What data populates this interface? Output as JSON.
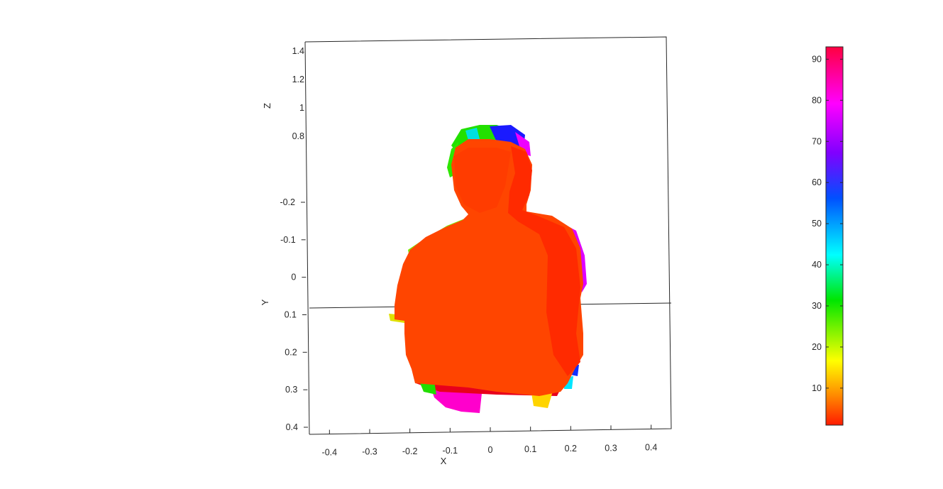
{
  "chart_data": {
    "type": "scatter",
    "subtype": "3d point cloud (depth-colored body scan)",
    "xlabel": "X",
    "ylabel": "Y",
    "zlabel": "Z",
    "x_ticks": [
      "-0.4",
      "-0.3",
      "-0.2",
      "-0.1",
      "0",
      "0.1",
      "0.2",
      "0.3",
      "0.4"
    ],
    "y_ticks": [
      "-0.2",
      "-0.1",
      "0",
      "0.1",
      "0.2",
      "0.3",
      "0.4"
    ],
    "z_ticks": [
      "1.4",
      "1.2",
      "1",
      "0.8"
    ],
    "xlim": [
      -0.45,
      0.45
    ],
    "ylim": [
      -0.2,
      0.4
    ],
    "zlim": [
      0.8,
      1.4
    ],
    "colorbar": {
      "ticks": [
        "10",
        "20",
        "30",
        "40",
        "50",
        "60",
        "70",
        "80",
        "90"
      ],
      "range": [
        1,
        93
      ],
      "colormap": "hsv",
      "stops": [
        "#ff1a00",
        "#ff8c00",
        "#ffff00",
        "#00e600",
        "#00ffff",
        "#0050ff",
        "#8000ff",
        "#ff00ff",
        "#ff0040"
      ]
    },
    "point_color_dominant": "#ff4500",
    "grid": false
  }
}
